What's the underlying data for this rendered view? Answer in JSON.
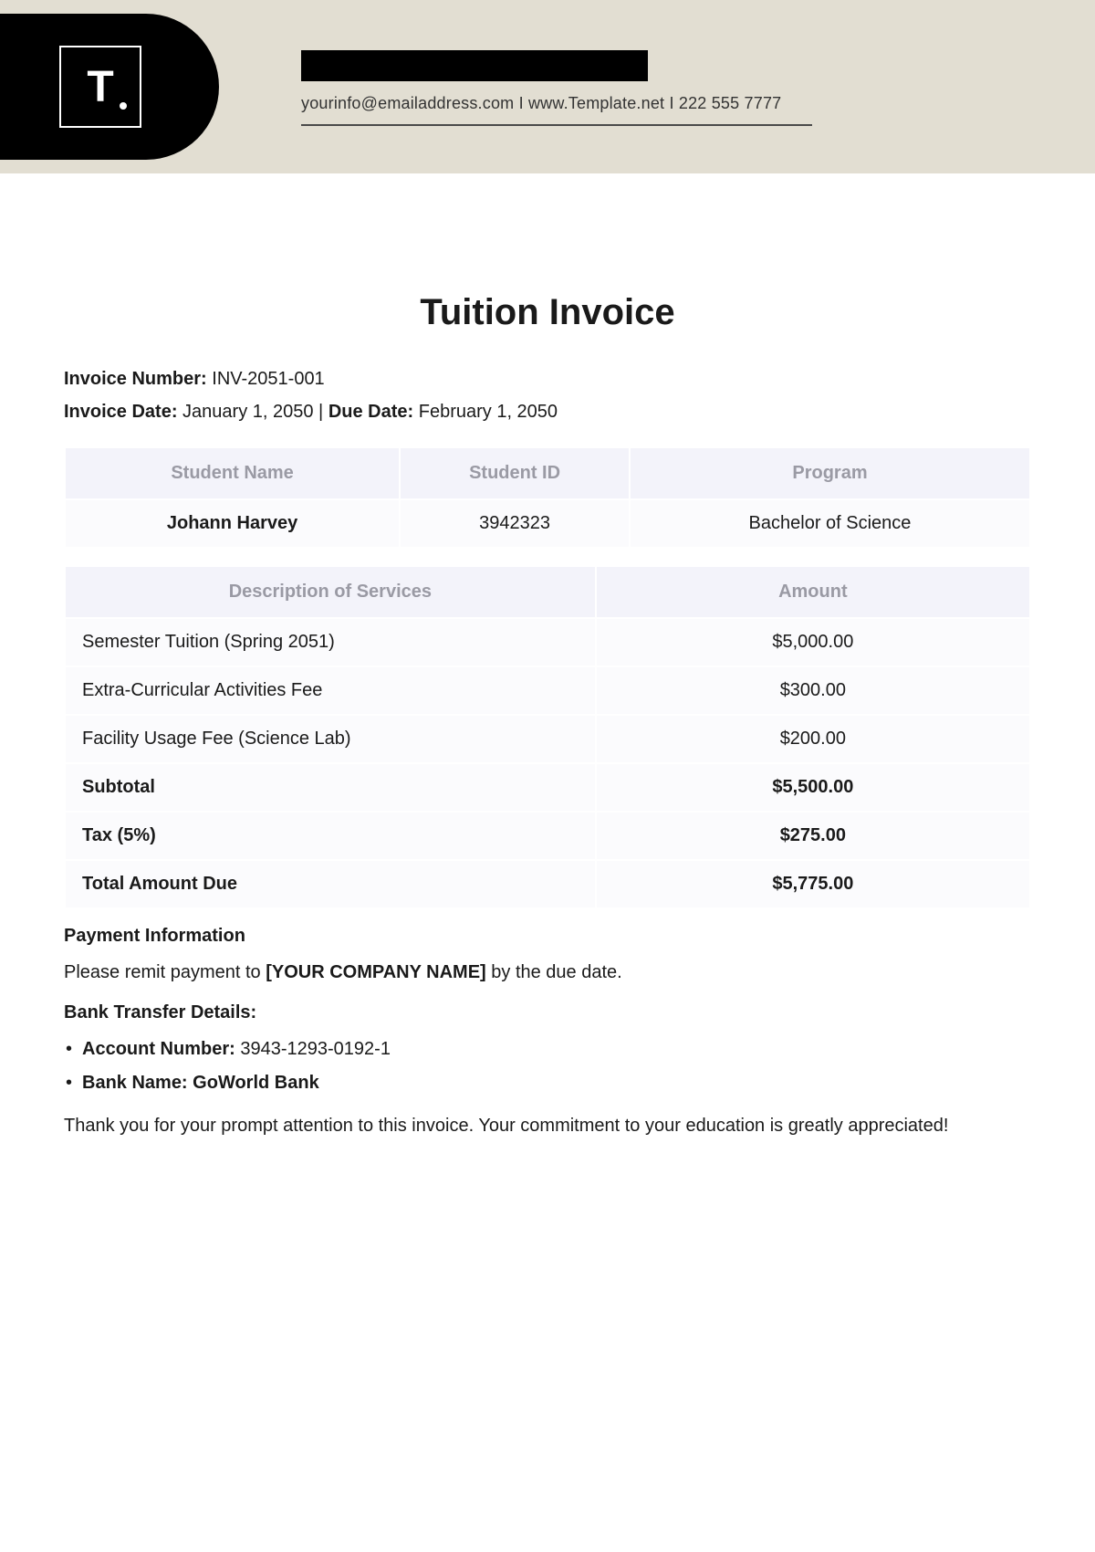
{
  "colors": {
    "header_band_bg": "#e2ded2",
    "logo_bg": "#000000",
    "logo_fg": "#ffffff",
    "table_header_bg": "#f3f3fa",
    "table_header_fg": "#9a9aa4",
    "table_cell_bg": "#fbfbfd",
    "text": "#1a1a1a"
  },
  "header": {
    "logo_letter": "T",
    "contact": {
      "email": "yourinfo@emailaddress.com",
      "sep1": "  I  ",
      "website": "www.Template.net",
      "sep2": "  I  ",
      "phone": "222 555 7777"
    }
  },
  "title": "Tuition Invoice",
  "meta": {
    "invoice_number_label": "Invoice Number:",
    "invoice_number": "INV-2051-001",
    "invoice_date_label": "Invoice Date:",
    "invoice_date": "January 1, 2050",
    "sep": " | ",
    "due_date_label": "Due Date:",
    "due_date": "February 1, 2050"
  },
  "student_table": {
    "columns": [
      "Student Name",
      "Student ID",
      "Program"
    ],
    "row": {
      "name": "Johann Harvey",
      "id": "3942323",
      "program": "Bachelor of Science"
    }
  },
  "services_table": {
    "columns": [
      "Description of Services",
      "Amount"
    ],
    "rows": [
      {
        "desc": "Semester Tuition (Spring 2051)",
        "amount": "$5,000.00",
        "bold": false
      },
      {
        "desc": "Extra-Curricular Activities Fee",
        "amount": "$300.00",
        "bold": false
      },
      {
        "desc": "Facility Usage Fee (Science Lab)",
        "amount": "$200.00",
        "bold": false
      },
      {
        "desc": "Subtotal",
        "amount": "$5,500.00",
        "bold": true
      },
      {
        "desc": "Tax (5%)",
        "amount": "$275.00",
        "bold": true
      },
      {
        "desc": "Total Amount Due",
        "amount": "$5,775.00",
        "bold": true
      }
    ]
  },
  "payment": {
    "heading": "Payment Information",
    "remit_prefix": "Please remit payment to ",
    "company_placeholder": "[YOUR COMPANY NAME]",
    "remit_suffix": " by the due date.",
    "bank_heading": "Bank Transfer Details:",
    "account_label": "Account Number:",
    "account_number": "3943-1293-0192-1",
    "bank_label": "Bank Name:",
    "bank_name": "GoWorld Bank",
    "thanks": "Thank you for your prompt attention to this invoice. Your commitment to your education is greatly appreciated!"
  }
}
